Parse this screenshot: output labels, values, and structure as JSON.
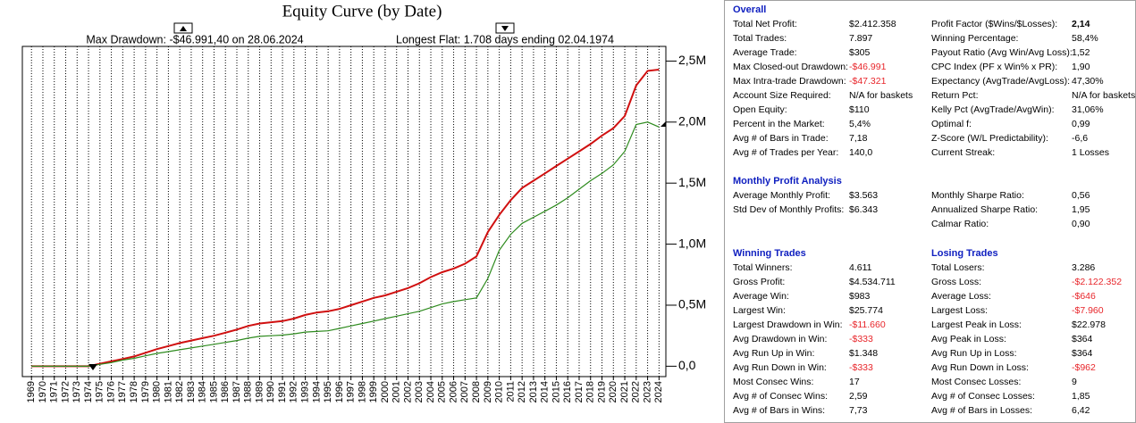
{
  "chart_data": {
    "type": "line",
    "title": "Equity Curve (by Date)",
    "annotations": [
      "Max Drawdown: -$46.991,40 on 28.06.2024",
      "Longest Flat: 1.708 days ending 02.04.1974"
    ],
    "x": [
      1969,
      1970,
      1971,
      1972,
      1973,
      1974,
      1975,
      1976,
      1977,
      1978,
      1979,
      1980,
      1981,
      1982,
      1983,
      1984,
      1985,
      1986,
      1987,
      1988,
      1989,
      1990,
      1991,
      1992,
      1993,
      1994,
      1995,
      1996,
      1997,
      1998,
      1999,
      2000,
      2001,
      2002,
      2003,
      2004,
      2005,
      2006,
      2007,
      2008,
      2009,
      2010,
      2011,
      2012,
      2013,
      2014,
      2015,
      2016,
      2017,
      2018,
      2019,
      2020,
      2021,
      2022,
      2023,
      2024
    ],
    "xlim": [
      1968.2,
      2024.6
    ],
    "xticks": [
      1969,
      1970,
      1971,
      1972,
      1973,
      1974,
      1975,
      1976,
      1977,
      1978,
      1979,
      1980,
      1981,
      1982,
      1983,
      1984,
      1985,
      1986,
      1987,
      1988,
      1989,
      1990,
      1991,
      1992,
      1993,
      1994,
      1995,
      1996,
      1997,
      1998,
      1999,
      2000,
      2001,
      2002,
      2003,
      2004,
      2005,
      2006,
      2007,
      2008,
      2009,
      2010,
      2011,
      2012,
      2013,
      2014,
      2015,
      2016,
      2017,
      2018,
      2019,
      2020,
      2021,
      2022,
      2023,
      2024
    ],
    "ylim": [
      -85000,
      2620000
    ],
    "yticks": [
      {
        "value": 0,
        "label": "0,0"
      },
      {
        "value": 500000,
        "label": "0,5M"
      },
      {
        "value": 1000000,
        "label": "1,0M"
      },
      {
        "value": 1500000,
        "label": "1,5M"
      },
      {
        "value": 2000000,
        "label": "2,0M"
      },
      {
        "value": 2500000,
        "label": "2,5M"
      }
    ],
    "grid": {
      "x": true,
      "y": false
    },
    "series": [
      {
        "color": "#d01010",
        "values": [
          0,
          0,
          0,
          0,
          0,
          0,
          20000,
          40000,
          60000,
          80000,
          110000,
          140000,
          165000,
          190000,
          210000,
          230000,
          250000,
          275000,
          300000,
          330000,
          350000,
          360000,
          370000,
          390000,
          420000,
          440000,
          450000,
          470000,
          500000,
          530000,
          560000,
          580000,
          610000,
          640000,
          680000,
          730000,
          770000,
          800000,
          840000,
          900000,
          1100000,
          1240000,
          1360000,
          1460000,
          1520000,
          1580000,
          1640000,
          1700000,
          1760000,
          1820000,
          1890000,
          1950000,
          2050000,
          2300000,
          2420000,
          2430000
        ]
      },
      {
        "color": "#2e8b1e",
        "values": [
          0,
          0,
          0,
          0,
          0,
          0,
          15000,
          30000,
          50000,
          65000,
          85000,
          105000,
          120000,
          135000,
          150000,
          165000,
          180000,
          195000,
          210000,
          230000,
          245000,
          250000,
          255000,
          265000,
          280000,
          285000,
          290000,
          310000,
          330000,
          350000,
          370000,
          390000,
          410000,
          430000,
          450000,
          480000,
          510000,
          530000,
          545000,
          560000,
          720000,
          950000,
          1080000,
          1170000,
          1220000,
          1270000,
          1320000,
          1380000,
          1450000,
          1520000,
          1580000,
          1650000,
          1760000,
          1980000,
          2000000,
          1960000
        ]
      }
    ]
  },
  "stats": {
    "sections": [
      {
        "titles": [
          "Overall"
        ],
        "rows": [
          [
            "Total Net Profit:",
            "$2.412.358",
            "Profit Factor ($Wins/$Losses):",
            {
              "text": "2,14",
              "bold": true
            }
          ],
          [
            "Total Trades:",
            "7.897",
            "Winning Percentage:",
            "58,4%"
          ],
          [
            "Average Trade:",
            "$305",
            "Payout Ratio (Avg Win/Avg Loss):",
            "1,52"
          ],
          [
            "Max Closed-out Drawdown:",
            {
              "text": "-$46.991",
              "color": "#e8262b"
            },
            "CPC Index (PF x Win% x PR):",
            "1,90"
          ],
          [
            "Max Intra-trade Drawdown:",
            {
              "text": "-$47.321",
              "color": "#e8262b"
            },
            "Expectancy (AvgTrade/AvgLoss):",
            "47,30%"
          ],
          [
            "Account Size Required:",
            "N/A for baskets",
            "Return Pct:",
            "N/A for baskets"
          ],
          [
            "Open Equity:",
            "$110",
            "Kelly Pct (AvgTrade/AvgWin):",
            "31,06%"
          ],
          [
            "Percent in the Market:",
            "5,4%",
            "Optimal f:",
            "0,99"
          ],
          [
            "Avg # of Bars in Trade:",
            "7,18",
            "Z-Score (W/L Predictability):",
            "-6,6"
          ],
          [
            "Avg # of Trades per Year:",
            "140,0",
            "Current Streak:",
            "1 Losses"
          ]
        ]
      },
      {
        "titles": [
          "Monthly Profit Analysis"
        ],
        "rows": [
          [
            "Average Monthly Profit:",
            "$3.563",
            "Monthly Sharpe Ratio:",
            "0,56"
          ],
          [
            "Std Dev of Monthly Profits:",
            "$6.343",
            "Annualized Sharpe Ratio:",
            "1,95"
          ],
          [
            null,
            null,
            "Calmar Ratio:",
            "0,90"
          ]
        ]
      },
      {
        "titles": [
          "Winning Trades",
          "Losing Trades"
        ],
        "rows": [
          [
            "Total Winners:",
            "4.611",
            "Total Losers:",
            "3.286"
          ],
          [
            "Gross Profit:",
            "$4.534.711",
            "Gross Loss:",
            {
              "text": "-$2.122.352",
              "color": "#e8262b"
            }
          ],
          [
            "Average Win:",
            "$983",
            "Average Loss:",
            {
              "text": "-$646",
              "color": "#e8262b"
            }
          ],
          [
            "Largest Win:",
            "$25.774",
            "Largest Loss:",
            {
              "text": "-$7.960",
              "color": "#e8262b"
            }
          ],
          [
            "Largest Drawdown in Win:",
            {
              "text": "-$11.660",
              "color": "#e8262b"
            },
            "Largest Peak in Loss:",
            "$22.978"
          ],
          [
            "Avg Drawdown in Win:",
            {
              "text": "-$333",
              "color": "#e8262b"
            },
            "Avg Peak in Loss:",
            "$364"
          ],
          [
            "Avg Run Up in Win:",
            "$1.348",
            "Avg Run Up in Loss:",
            "$364"
          ],
          [
            "Avg Run Down in Win:",
            {
              "text": "-$333",
              "color": "#e8262b"
            },
            "Avg Run Down in Loss:",
            {
              "text": "-$962",
              "color": "#e8262b"
            }
          ],
          [
            "Most Consec Wins:",
            "17",
            "Most Consec Losses:",
            "9"
          ],
          [
            "Avg # of Consec Wins:",
            "2,59",
            "Avg # of Consec Losses:",
            "1,85"
          ],
          [
            "Avg # of Bars in Wins:",
            "7,73",
            "Avg # of Bars in Losses:",
            "6,42"
          ]
        ]
      }
    ]
  }
}
